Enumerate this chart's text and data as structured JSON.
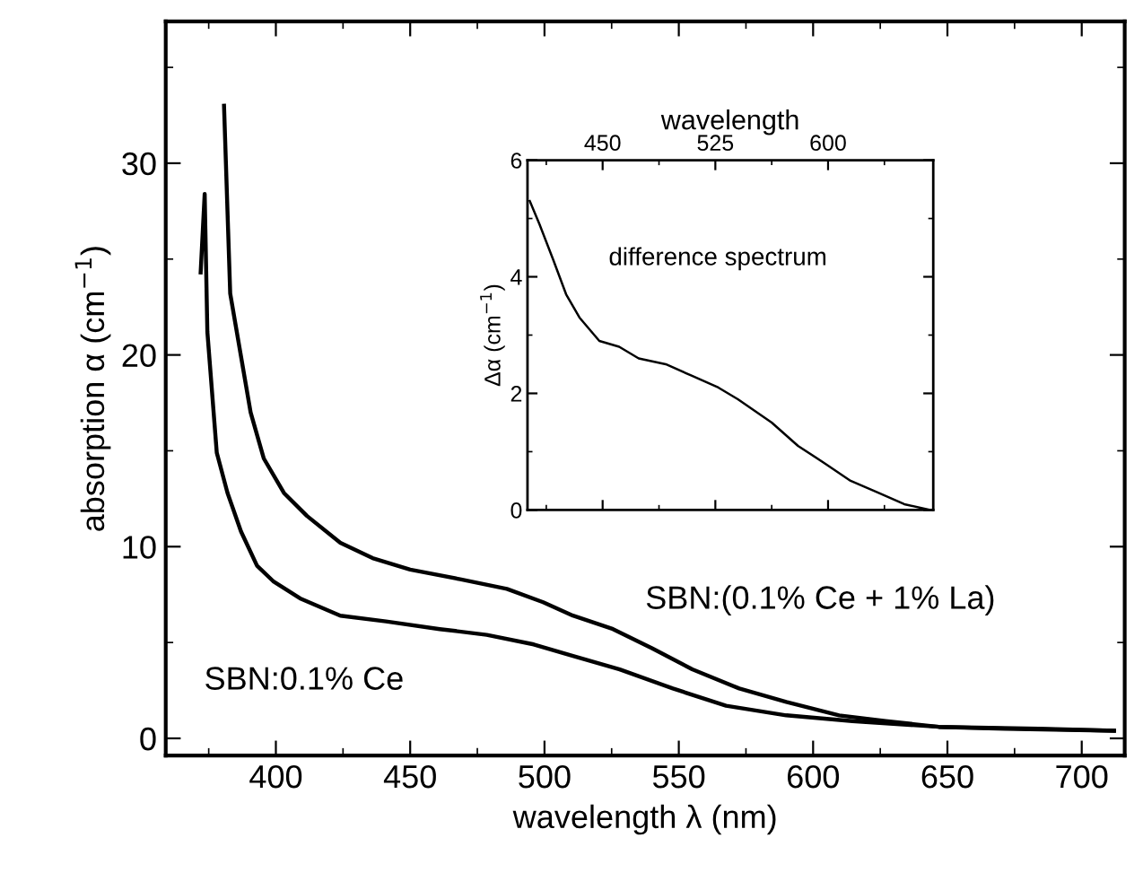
{
  "chart_data": [
    {
      "type": "line",
      "xlabel": "wavelength λ (nm)",
      "ylabel": "absorption α (cm$^{−1}$)",
      "xlim": [
        359,
        716
      ],
      "ylim": [
        -0.9,
        37.4
      ],
      "xticks": [
        400,
        450,
        500,
        550,
        600,
        650,
        700
      ],
      "yticks": [
        0,
        10,
        20,
        30
      ],
      "grid": false,
      "legend": false,
      "line_style": "solid",
      "marker": "none",
      "series": [
        {
          "name": "SBN:(0.1% Ce + 1% La)",
          "color": "#000000",
          "x": [
            380.7,
            383,
            390.6,
            395.5,
            403,
            411.6,
            424,
            436,
            450,
            468.6,
            486,
            499.5,
            510.6,
            525.5,
            540,
            555,
            572.5,
            590,
            609.7,
            627,
            646.8,
            671.5,
            712
          ],
          "values": [
            33.0,
            23.2,
            17.0,
            14.6,
            12.8,
            11.6,
            10.2,
            9.4,
            8.8,
            8.3,
            7.8,
            7.1,
            6.4,
            5.7,
            4.7,
            3.6,
            2.6,
            1.9,
            1.2,
            0.9,
            0.6,
            0.5,
            0.4
          ]
        },
        {
          "name": "SBN:0.1% Ce",
          "color": "#000000",
          "x": [
            372,
            373.5,
            374.5,
            378,
            382,
            387,
            393,
            399,
            409,
            424,
            441,
            461,
            478.5,
            496,
            510.6,
            528,
            547.8,
            567.6,
            590,
            614.6,
            646.8,
            684,
            712
          ],
          "values": [
            24.3,
            28.4,
            21.2,
            14.9,
            12.8,
            10.8,
            9.0,
            8.2,
            7.3,
            6.4,
            6.1,
            5.7,
            5.4,
            4.9,
            4.3,
            3.6,
            2.6,
            1.7,
            1.2,
            0.9,
            0.6,
            0.5,
            0.4
          ]
        }
      ]
    },
    {
      "type": "line",
      "xlabel": "wavelength",
      "ylabel": "Δα (cm$^{−1}$)",
      "xlim": [
        400,
        670
      ],
      "ylim": [
        0,
        6
      ],
      "xticks": [
        450,
        525,
        600
      ],
      "yticks": [
        0,
        2,
        4,
        6
      ],
      "grid": false,
      "legend": false,
      "line_style": "solid",
      "marker": "none",
      "annotations": [
        "difference spectrum"
      ],
      "series": [
        {
          "color": "#000000",
          "x": [
            401.5,
            408,
            417,
            425.7,
            434.6,
            447.8,
            461,
            474,
            492,
            509.5,
            527,
            540,
            562.5,
            580,
            597.8,
            615,
            633,
            650.7,
            668
          ],
          "values": [
            5.3,
            4.9,
            4.3,
            3.7,
            3.3,
            2.9,
            2.8,
            2.6,
            2.5,
            2.3,
            2.1,
            1.9,
            1.5,
            1.1,
            0.8,
            0.5,
            0.3,
            0.1,
            0.0
          ]
        }
      ]
    }
  ]
}
